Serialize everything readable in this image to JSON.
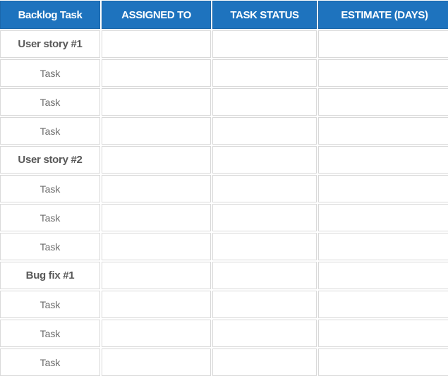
{
  "headers": [
    "Backlog Task",
    "ASSIGNED TO",
    "TASK STATUS",
    "ESTIMATE (DAYS)"
  ],
  "rows": [
    {
      "task": "User story #1",
      "group": true,
      "assigned": "",
      "status": "",
      "estimate": ""
    },
    {
      "task": "Task",
      "group": false,
      "assigned": "",
      "status": "",
      "estimate": ""
    },
    {
      "task": "Task",
      "group": false,
      "assigned": "",
      "status": "",
      "estimate": ""
    },
    {
      "task": "Task",
      "group": false,
      "assigned": "",
      "status": "",
      "estimate": ""
    },
    {
      "task": "User story #2",
      "group": true,
      "assigned": "",
      "status": "",
      "estimate": ""
    },
    {
      "task": "Task",
      "group": false,
      "assigned": "",
      "status": "",
      "estimate": ""
    },
    {
      "task": "Task",
      "group": false,
      "assigned": "",
      "status": "",
      "estimate": ""
    },
    {
      "task": "Task",
      "group": false,
      "assigned": "",
      "status": "",
      "estimate": ""
    },
    {
      "task": "Bug fix #1",
      "group": true,
      "assigned": "",
      "status": "",
      "estimate": ""
    },
    {
      "task": "Task",
      "group": false,
      "assigned": "",
      "status": "",
      "estimate": ""
    },
    {
      "task": "Task",
      "group": false,
      "assigned": "",
      "status": "",
      "estimate": ""
    },
    {
      "task": "Task",
      "group": false,
      "assigned": "",
      "status": "",
      "estimate": ""
    }
  ],
  "colors": {
    "header_bg": "#1e73be",
    "header_text": "#ffffff",
    "border": "#d9d9d9",
    "task_text": "#6b6b6b"
  }
}
